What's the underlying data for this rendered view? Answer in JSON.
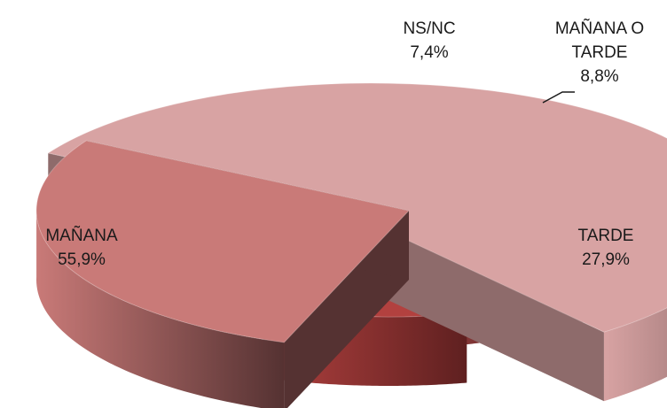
{
  "chart_data": {
    "type": "pie",
    "style": "3d-exploded",
    "title": "",
    "legend": "none",
    "slices": [
      {
        "label_lines": [
          "MAÑANA"
        ],
        "value": 55.9,
        "value_label": "55,9%",
        "top_color": "#d8a3a3",
        "side_color": "#8e6b6b"
      },
      {
        "label_lines": [
          "NS/NC"
        ],
        "value": 7.4,
        "value_label": "7,4%",
        "top_color": "#8b3a3a",
        "side_color": "#5a2222"
      },
      {
        "label_lines": [
          "MAÑANA O",
          "TARDE"
        ],
        "value": 8.8,
        "value_label": "8,8%",
        "top_color": "#b2413f",
        "side_color": "#5f2020"
      },
      {
        "label_lines": [
          "TARDE"
        ],
        "value": 27.9,
        "value_label": "27,9%",
        "top_color": "#c97a78",
        "side_color": "#553232"
      }
    ]
  }
}
